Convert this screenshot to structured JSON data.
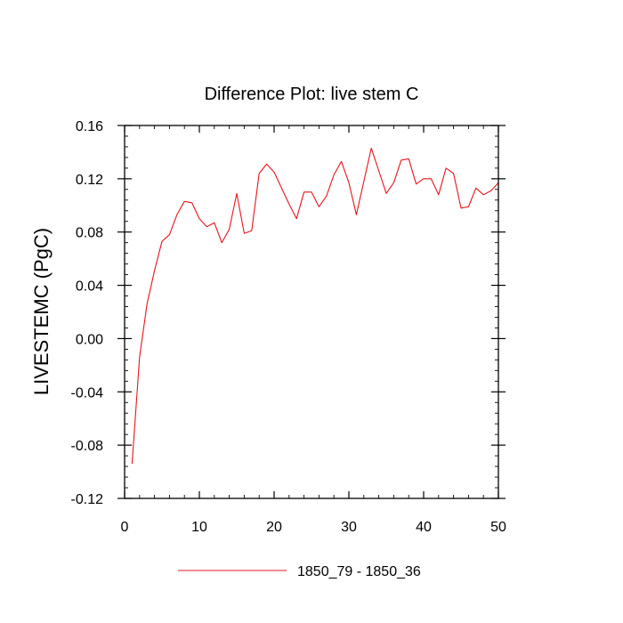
{
  "chart_data": {
    "type": "line",
    "title": "Difference Plot: live stem C",
    "xlabel": "",
    "ylabel": "LIVESTEMC  (PgC)",
    "xlim": [
      0,
      50
    ],
    "ylim": [
      -0.12,
      0.16
    ],
    "x_ticks": [
      0,
      10,
      20,
      30,
      40,
      50
    ],
    "x_tick_labels": [
      "0",
      "10",
      "20",
      "30",
      "40",
      "50"
    ],
    "x_minor_step": 2,
    "y_ticks": [
      0.16,
      0.12,
      0.08,
      0.04,
      0.0,
      -0.04,
      -0.08,
      -0.12
    ],
    "y_tick_labels": [
      "0.16",
      "0.12",
      "0.08",
      "0.04",
      "0.00",
      "-0.04",
      "-0.08",
      "-0.12"
    ],
    "y_minor_step": 0.008,
    "grid": false,
    "legend_position": "bottom",
    "series": [
      {
        "name": "1850_79 - 1850_36",
        "color": "#e8141c",
        "x": [
          1,
          2,
          3,
          4,
          5,
          6,
          7,
          8,
          9,
          10,
          11,
          12,
          13,
          14,
          15,
          16,
          17,
          18,
          19,
          20,
          21,
          22,
          23,
          24,
          25,
          26,
          27,
          28,
          29,
          30,
          31,
          32,
          33,
          34,
          35,
          36,
          37,
          38,
          39,
          40,
          41,
          42,
          43,
          44,
          45,
          46,
          47,
          48,
          49,
          50
        ],
        "y": [
          -0.094,
          -0.014,
          0.026,
          0.051,
          0.073,
          0.078,
          0.093,
          0.103,
          0.102,
          0.09,
          0.084,
          0.087,
          0.072,
          0.082,
          0.109,
          0.079,
          0.081,
          0.124,
          0.131,
          0.125,
          0.113,
          0.101,
          0.09,
          0.11,
          0.11,
          0.099,
          0.107,
          0.123,
          0.133,
          0.117,
          0.093,
          0.118,
          0.143,
          0.126,
          0.109,
          0.117,
          0.134,
          0.135,
          0.116,
          0.12,
          0.12,
          0.108,
          0.128,
          0.124,
          0.098,
          0.099,
          0.113,
          0.108,
          0.111,
          0.117
        ]
      }
    ]
  }
}
